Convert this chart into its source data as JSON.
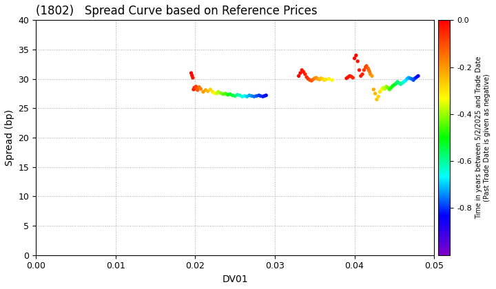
{
  "title": "(1802)   Spread Curve based on Reference Prices",
  "xlabel": "DV01",
  "ylabel": "Spread (bp)",
  "colorbar_label_line1": "Time in years between 5/2/2025 and Trade Date",
  "colorbar_label_line2": "(Past Trade Date is given as negative)",
  "xlim": [
    0.0,
    0.05
  ],
  "ylim": [
    0,
    40
  ],
  "xticks": [
    0.0,
    0.01,
    0.02,
    0.03,
    0.04,
    0.05
  ],
  "yticks": [
    0,
    5,
    10,
    15,
    20,
    25,
    30,
    35,
    40
  ],
  "cmap": "gist_rainbow_r",
  "clim": [
    -1.0,
    0.0
  ],
  "cticks": [
    0.0,
    -0.2,
    -0.4,
    -0.6,
    -0.8
  ],
  "background_color": "#ffffff",
  "grid_color": "#aaaaaa",
  "title_fontsize": 12,
  "figsize": [
    7.2,
    4.2
  ],
  "dpi": 100,
  "scatter_size": 8,
  "cluster1_x": [
    0.0195,
    0.0196,
    0.0197,
    0.0198,
    0.0199,
    0.02,
    0.0201,
    0.0202,
    0.0203,
    0.0205,
    0.0207,
    0.021,
    0.0213,
    0.0216,
    0.0219,
    0.0222,
    0.0224,
    0.0227,
    0.0229,
    0.0232,
    0.0235,
    0.0238,
    0.0241,
    0.0244,
    0.0247,
    0.025,
    0.0253,
    0.0256,
    0.0259,
    0.0262,
    0.0265,
    0.0268,
    0.0271,
    0.0274,
    0.0277,
    0.028,
    0.0282,
    0.0285,
    0.0287,
    0.0289
  ],
  "cluster1_y": [
    31.0,
    30.6,
    30.2,
    28.2,
    28.5,
    28.3,
    28.7,
    28.4,
    28.1,
    28.6,
    28.3,
    27.8,
    28.1,
    27.9,
    28.2,
    27.8,
    27.6,
    27.5,
    27.8,
    27.6,
    27.4,
    27.5,
    27.3,
    27.4,
    27.2,
    27.1,
    27.3,
    27.2,
    27.0,
    27.1,
    27.0,
    27.2,
    27.1,
    27.0,
    27.1,
    27.2,
    27.1,
    27.0,
    27.1,
    27.2
  ],
  "cluster1_c": [
    0.0,
    -0.01,
    -0.02,
    -0.03,
    -0.04,
    -0.06,
    -0.08,
    -0.1,
    -0.12,
    -0.15,
    -0.17,
    -0.2,
    -0.22,
    -0.25,
    -0.28,
    -0.3,
    -0.33,
    -0.36,
    -0.38,
    -0.41,
    -0.44,
    -0.46,
    -0.49,
    -0.52,
    -0.54,
    -0.57,
    -0.6,
    -0.62,
    -0.65,
    -0.67,
    -0.7,
    -0.72,
    -0.74,
    -0.76,
    -0.78,
    -0.79,
    -0.8,
    -0.81,
    -0.82,
    -0.83
  ],
  "cluster2a_x": [
    0.033,
    0.0332,
    0.0334,
    0.0336,
    0.0338,
    0.034,
    0.0342,
    0.0344,
    0.0346,
    0.0348,
    0.035,
    0.0352,
    0.0354,
    0.0356,
    0.0358,
    0.036,
    0.0362,
    0.0364,
    0.0368,
    0.0372
  ],
  "cluster2a_y": [
    30.5,
    31.0,
    31.5,
    31.2,
    30.8,
    30.3,
    30.0,
    29.8,
    29.7,
    29.9,
    30.1,
    30.2,
    30.0,
    29.9,
    30.1,
    30.0,
    29.8,
    29.9,
    30.0,
    29.8
  ],
  "cluster2a_c": [
    0.0,
    -0.01,
    -0.02,
    -0.03,
    -0.04,
    -0.05,
    -0.07,
    -0.09,
    -0.11,
    -0.14,
    -0.17,
    -0.19,
    -0.21,
    -0.23,
    -0.25,
    -0.27,
    -0.29,
    -0.3,
    -0.32,
    -0.34
  ],
  "cluster2b_x": [
    0.039,
    0.0392,
    0.0394,
    0.0396,
    0.0398,
    0.04,
    0.0402,
    0.0404,
    0.0406,
    0.0408,
    0.041,
    0.0412,
    0.0414,
    0.0415,
    0.0417,
    0.0418,
    0.0419,
    0.042,
    0.0422,
    0.0424,
    0.0426,
    0.0428,
    0.043,
    0.0432,
    0.0434,
    0.0436,
    0.0438,
    0.044,
    0.0442,
    0.0444,
    0.0446,
    0.0448,
    0.045,
    0.0452,
    0.0454,
    0.0456,
    0.0458,
    0.046,
    0.0462,
    0.0464,
    0.0466,
    0.0468,
    0.047,
    0.0472,
    0.0474,
    0.0476,
    0.0478,
    0.048
  ],
  "cluster2b_y": [
    30.1,
    30.3,
    30.5,
    30.4,
    30.2,
    33.5,
    34.0,
    33.0,
    31.5,
    30.5,
    30.8,
    31.5,
    32.0,
    32.2,
    31.8,
    31.5,
    31.2,
    30.8,
    30.5,
    28.2,
    27.5,
    26.5,
    27.0,
    27.8,
    28.2,
    28.5,
    28.3,
    28.7,
    28.5,
    28.2,
    28.5,
    28.8,
    29.0,
    29.2,
    29.5,
    29.3,
    29.1,
    29.3,
    29.5,
    29.7,
    30.0,
    30.2,
    30.1,
    30.0,
    29.8,
    30.1,
    30.3,
    30.5
  ],
  "cluster2b_c": [
    -0.01,
    -0.02,
    -0.03,
    -0.04,
    -0.05,
    0.0,
    -0.01,
    -0.02,
    -0.03,
    -0.04,
    -0.05,
    -0.06,
    -0.08,
    -0.1,
    -0.12,
    -0.14,
    -0.16,
    -0.18,
    -0.2,
    -0.22,
    -0.24,
    -0.26,
    -0.28,
    -0.3,
    -0.33,
    -0.36,
    -0.38,
    -0.4,
    -0.43,
    -0.46,
    -0.48,
    -0.5,
    -0.52,
    -0.54,
    -0.56,
    -0.58,
    -0.6,
    -0.62,
    -0.64,
    -0.67,
    -0.7,
    -0.72,
    -0.74,
    -0.76,
    -0.78,
    -0.8,
    -0.82,
    -0.84
  ]
}
